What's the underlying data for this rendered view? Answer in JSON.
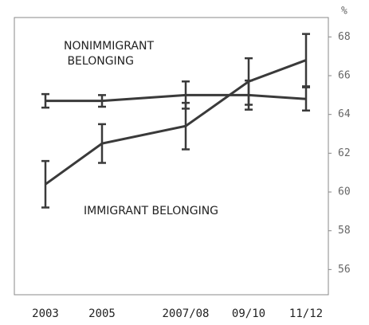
{
  "chart_data": {
    "type": "line",
    "y_unit": "%",
    "categories": [
      "2003",
      "2005",
      "2007/08",
      "09/10",
      "11/12"
    ],
    "series": [
      {
        "name": "NONIMMIGRANT BELONGING",
        "color": "#3a3a3a",
        "values": [
          64.7,
          64.7,
          65.0,
          65.0,
          64.8
        ],
        "errors": [
          0.35,
          0.3,
          0.7,
          0.75,
          0.6
        ]
      },
      {
        "name": "IMMIGRANT BELONGING",
        "color": "#3a3a3a",
        "values": [
          60.4,
          62.5,
          63.4,
          65.7,
          66.8
        ],
        "errors": [
          1.2,
          1.0,
          1.2,
          1.2,
          1.35
        ]
      }
    ],
    "ylim": [
      54.7,
      69
    ],
    "yticks": [
      56,
      58,
      60,
      62,
      64,
      66,
      68
    ],
    "grid": false
  }
}
